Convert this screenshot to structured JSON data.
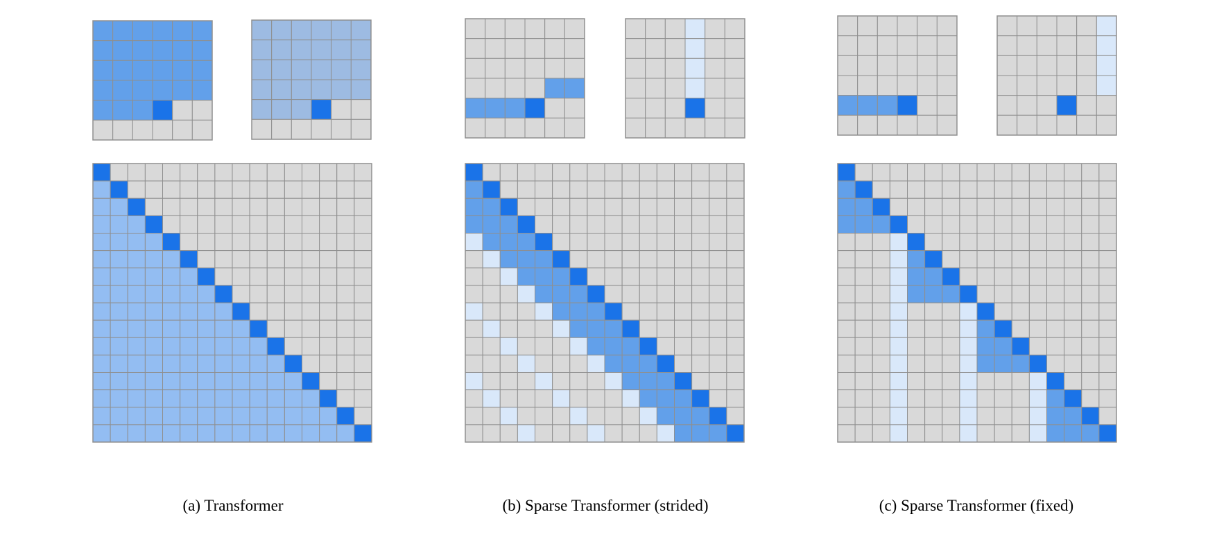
{
  "colors": {
    "empty": "#d9d9d9",
    "grid_line": "#8f8f8f",
    "current": "#1a73e8",
    "attended_strong": "#62a0ea",
    "attended_full": "#93bdf2",
    "attended_upper": "#9dbbe2",
    "attended_faint": "#d9e8fa",
    "background": "#ffffff"
  },
  "legend_cell_codes": {
    "0": "empty",
    "1": "attended_strong",
    "2": "attended_upper",
    "3": "current",
    "4": "attended_faint",
    "5": "attended_full"
  },
  "panels": [
    {
      "id": "a",
      "caption": "(a) Transformer",
      "small_grids": [
        {
          "size": 6,
          "cells": [
            "111111",
            "111111",
            "111111",
            "111111",
            "111300",
            "000000"
          ]
        },
        {
          "size": 6,
          "cells": [
            "222222",
            "222222",
            "222222",
            "222222",
            "222300",
            "000000"
          ]
        }
      ],
      "matrix": {
        "size": 16,
        "pattern": "full"
      }
    },
    {
      "id": "b",
      "caption": "(b) Sparse Transformer (strided)",
      "small_grids": [
        {
          "size": 6,
          "cells": [
            "000000",
            "000000",
            "000000",
            "000011",
            "111300",
            "000000"
          ]
        },
        {
          "size": 6,
          "cells": [
            "000400",
            "000400",
            "000400",
            "000400",
            "000300",
            "000000"
          ]
        }
      ],
      "matrix": {
        "size": 16,
        "pattern": "strided",
        "stride": 4
      }
    },
    {
      "id": "c",
      "caption": "(c) Sparse Transformer (fixed)",
      "small_grids": [
        {
          "size": 6,
          "cells": [
            "000000",
            "000000",
            "000000",
            "000000",
            "111300",
            "000000"
          ]
        },
        {
          "size": 6,
          "cells": [
            "000004",
            "000004",
            "000004",
            "000004",
            "000300",
            "000000"
          ]
        }
      ],
      "matrix": {
        "size": 16,
        "pattern": "fixed",
        "block": 4
      }
    }
  ]
}
